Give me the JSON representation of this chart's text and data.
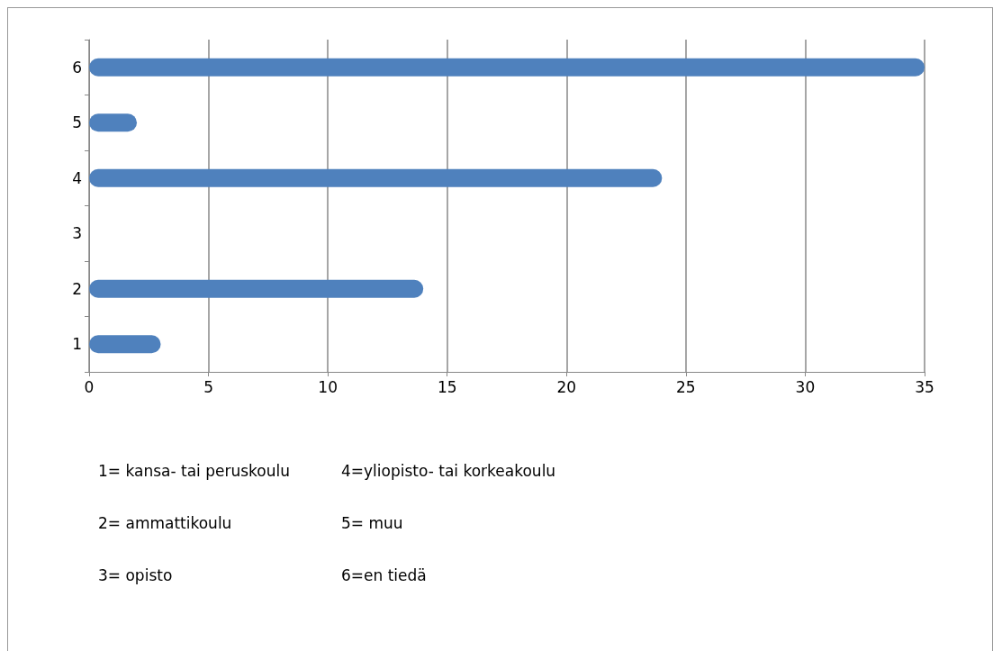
{
  "chart_data": {
    "type": "bar",
    "orientation": "horizontal",
    "categories": [
      "6",
      "5",
      "4",
      "3",
      "2",
      "1"
    ],
    "values": [
      35,
      2,
      24,
      0,
      14,
      3
    ],
    "color": "#4f81bd",
    "xlim": [
      0,
      35
    ],
    "xticks": [
      0,
      5,
      10,
      15,
      20,
      25,
      30,
      35
    ],
    "grid": "x",
    "annotations": [
      "1= kansa- tai peruskoulu",
      "4=yliopisto- tai korkeakoulu",
      "2= ammattikoulu",
      "5= muu",
      "3= opisto",
      "6=en tiedä"
    ]
  }
}
